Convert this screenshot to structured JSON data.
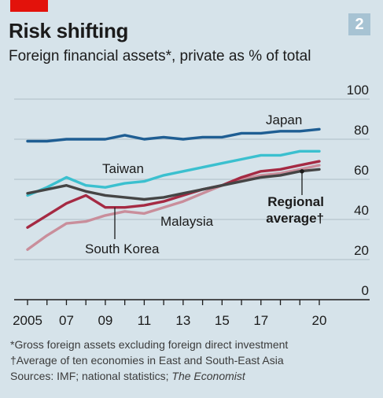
{
  "header": {
    "chart_number": "2",
    "title": "Risk shifting",
    "subtitle": "Foreign financial assets*, private as % of total"
  },
  "footnotes": {
    "note1": "*Gross foreign assets excluding foreign direct investment",
    "note2": "†Average of ten economies in East and South-East Asia",
    "sources_prefix": "Sources: IMF; national statistics; ",
    "sources_italic": "The Economist"
  },
  "colors": {
    "background": "#d6e3ea",
    "gridline": "#b6c5ce",
    "axis": "#1b1b1b",
    "accent_red": "#e3120b",
    "japan": "#1f5e93",
    "taiwan": "#3bc0cf",
    "regional_average": "#454545",
    "south_korea": "#a52a43",
    "malaysia": "#c98e9b"
  },
  "chart_data": {
    "type": "line",
    "title": "Risk shifting",
    "subtitle": "Foreign financial assets*, private as % of total",
    "xlabel": "",
    "ylabel": "",
    "x": [
      2005,
      2006,
      2007,
      2008,
      2009,
      2010,
      2011,
      2012,
      2013,
      2014,
      2015,
      2016,
      2017,
      2018,
      2019,
      2020
    ],
    "xlim": [
      2005,
      2020
    ],
    "ylim": [
      0,
      100
    ],
    "y_ticks": [
      0,
      20,
      40,
      60,
      80,
      100
    ],
    "y_tick_labels": [
      "0",
      "20",
      "40",
      "60",
      "80",
      "100"
    ],
    "x_ticks": [
      2005,
      2006,
      2007,
      2008,
      2009,
      2010,
      2011,
      2012,
      2013,
      2014,
      2015,
      2016,
      2017,
      2018,
      2019,
      2020
    ],
    "x_tick_labels": [
      {
        "value": 2005,
        "label": "2005"
      },
      {
        "value": 2007,
        "label": "07"
      },
      {
        "value": 2009,
        "label": "09"
      },
      {
        "value": 2011,
        "label": "11"
      },
      {
        "value": 2013,
        "label": "13"
      },
      {
        "value": 2015,
        "label": "15"
      },
      {
        "value": 2017,
        "label": "17"
      },
      {
        "value": 2020,
        "label": "20"
      }
    ],
    "grid": true,
    "y_axis_side": "right",
    "legend": "direct labels",
    "series": [
      {
        "name": "Japan",
        "color": "#1f5e93",
        "values": [
          79,
          79,
          80,
          80,
          80,
          82,
          80,
          81,
          80,
          81,
          81,
          83,
          83,
          84,
          84,
          85
        ]
      },
      {
        "name": "Taiwan",
        "color": "#3bc0cf",
        "values": [
          52,
          56,
          61,
          57,
          56,
          58,
          59,
          62,
          64,
          66,
          68,
          70,
          72,
          72,
          74,
          74
        ]
      },
      {
        "name": "Regional average†",
        "color": "#454545",
        "values": [
          53,
          55,
          57,
          54,
          52,
          51,
          50,
          51,
          53,
          55,
          57,
          59,
          61,
          62,
          64,
          65
        ]
      },
      {
        "name": "South Korea",
        "color": "#a52a43",
        "values": [
          36,
          42,
          48,
          52,
          46,
          46,
          47,
          49,
          52,
          55,
          57,
          61,
          64,
          65,
          67,
          69
        ]
      },
      {
        "name": "Malaysia",
        "color": "#c98e9b",
        "values": [
          25,
          32,
          38,
          39,
          42,
          44,
          43,
          46,
          49,
          53,
          57,
          60,
          62,
          63,
          65,
          67
        ]
      }
    ],
    "annotations": [
      {
        "text": "Japan",
        "series": "Japan"
      },
      {
        "text": "Taiwan",
        "series": "Taiwan"
      },
      {
        "text": "Malaysia",
        "series": "Malaysia"
      },
      {
        "text": "South Korea",
        "series": "South Korea"
      },
      {
        "text_line1": "Regional",
        "text_line2": "average†",
        "series": "Regional average†"
      }
    ]
  }
}
